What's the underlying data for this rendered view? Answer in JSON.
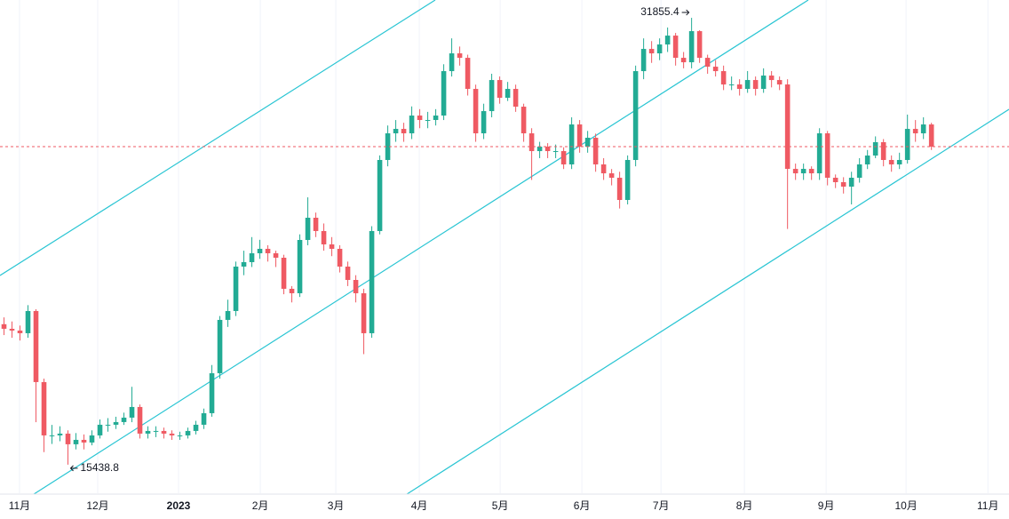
{
  "chart_data": {
    "type": "candlestick",
    "up_color": "#22ab94",
    "down_color": "#ef5a63",
    "last_price_line": true,
    "last_price_color": "#ef5a63",
    "grid": true,
    "xlim": [
      -0.5,
      125.7
    ],
    "ylim": [
      14390,
      32510
    ],
    "xticks": [
      {
        "value": 1.94,
        "label": "11月"
      },
      {
        "value": 11.72,
        "label": "12月"
      },
      {
        "value": 21.83,
        "label": "2023"
      },
      {
        "value": 32.06,
        "label": "2月"
      },
      {
        "value": 41.5,
        "label": "3月"
      },
      {
        "value": 51.94,
        "label": "4月"
      },
      {
        "value": 62.06,
        "label": "5月"
      },
      {
        "value": 72.28,
        "label": "6月"
      },
      {
        "value": 82.17,
        "label": "7月"
      },
      {
        "value": 92.61,
        "label": "8月"
      },
      {
        "value": 102.83,
        "label": "9月"
      },
      {
        "value": 112.83,
        "label": "10月"
      },
      {
        "value": 123.06,
        "label": "11月"
      }
    ],
    "annotations": [
      {
        "label": "31855.4",
        "value": 31855.4
      },
      {
        "label": "15438.8",
        "value": 15438.8
      }
    ],
    "open": [
      20600,
      20431,
      20366,
      20268,
      21084,
      18473,
      16514,
      16514,
      16580,
      16188,
      16351,
      16253,
      16514,
      16906,
      16906,
      17004,
      17167,
      17559,
      16580,
      16678,
      16678,
      16580,
      16514,
      16514,
      16678,
      16906,
      17330,
      18799,
      20758,
      21084,
      22716,
      22879,
      23206,
      23369,
      23206,
      23042,
      21900,
      21737,
      23695,
      24511,
      24022,
      23532,
      23369,
      22716,
      22226,
      21737,
      20268,
      24022,
      26633,
      27612,
      27775,
      27612,
      28265,
      28102,
      28102,
      28265,
      29897,
      30550,
      30386,
      29244,
      27612,
      28428,
      29570,
      28918,
      29244,
      28591,
      27612,
      26959,
      27122,
      26959,
      26959,
      26470,
      27938,
      27122,
      27449,
      26470,
      26143,
      25980,
      25164,
      26633,
      29897,
      30713,
      30550,
      30876,
      31202,
      30386,
      30223,
      31366,
      30386,
      30060,
      29897,
      29407,
      29407,
      29244,
      29570,
      29244,
      29734,
      29570,
      29407,
      26306,
      26143,
      26306,
      26143,
      27612,
      25980,
      25817,
      25654,
      25980,
      26470,
      26796,
      27286,
      26633,
      26470,
      26633,
      27775,
      27612,
      27938
    ],
    "high": [
      20850,
      20700,
      20550,
      21300,
      21150,
      18600,
      16900,
      16850,
      16700,
      16600,
      16550,
      16700,
      17100,
      17150,
      17200,
      17350,
      18300,
      17650,
      16850,
      16850,
      16800,
      16700,
      16650,
      16800,
      17050,
      17500,
      19100,
      20900,
      21500,
      22900,
      23300,
      23800,
      23700,
      23500,
      23300,
      23150,
      22000,
      23900,
      25260,
      24700,
      24300,
      23800,
      23500,
      22900,
      22400,
      21900,
      24200,
      26800,
      27900,
      28100,
      28000,
      28600,
      28500,
      28400,
      28500,
      30150,
      31100,
      30800,
      30500,
      29400,
      28700,
      29800,
      29700,
      29500,
      29400,
      28700,
      27800,
      27300,
      27250,
      27200,
      27100,
      28200,
      28100,
      27700,
      27600,
      26700,
      26300,
      26200,
      26800,
      30100,
      31100,
      31000,
      31100,
      31500,
      31300,
      30600,
      31855.4,
      31400,
      30500,
      30300,
      30100,
      29700,
      29600,
      29900,
      29700,
      30000,
      29900,
      29700,
      29600,
      26500,
      26500,
      26400,
      27800,
      27700,
      26100,
      26000,
      26200,
      26700,
      27000,
      27500,
      27400,
      26800,
      26900,
      28300,
      28100,
      28200,
      28000
    ],
    "low": [
      20200,
      20100,
      20000,
      20100,
      17000,
      15900,
      16200,
      16300,
      15438.8,
      16000,
      16000,
      16150,
      16400,
      16650,
      16750,
      16900,
      17000,
      16400,
      16400,
      16450,
      16400,
      16350,
      16350,
      16400,
      16550,
      16750,
      17200,
      18600,
      20500,
      20900,
      22400,
      22700,
      23000,
      22900,
      22700,
      21700,
      21400,
      21600,
      23500,
      23800,
      23300,
      23100,
      22500,
      22000,
      21400,
      19500,
      20100,
      23900,
      26400,
      27300,
      27300,
      27400,
      27800,
      27800,
      27900,
      28100,
      29700,
      30100,
      29000,
      27300,
      27400,
      28200,
      28700,
      28800,
      28400,
      27300,
      25900,
      26700,
      26700,
      26700,
      26300,
      26300,
      26900,
      26900,
      26200,
      25900,
      25700,
      24850,
      25000,
      26400,
      29600,
      30200,
      30300,
      30600,
      30100,
      30000,
      30000,
      30200,
      29800,
      29700,
      29200,
      29200,
      29000,
      29100,
      29000,
      29100,
      29300,
      29200,
      24100,
      25900,
      25900,
      25900,
      25900,
      25700,
      25600,
      25400,
      25000,
      25800,
      26300,
      26700,
      26400,
      26200,
      26300,
      26500,
      27300,
      27400,
      27000
    ],
    "close": [
      20431,
      20366,
      20268,
      21084,
      18473,
      16514,
      16514,
      16580,
      16188,
      16351,
      16253,
      16514,
      16906,
      16906,
      17004,
      17167,
      17559,
      16580,
      16678,
      16678,
      16580,
      16514,
      16514,
      16678,
      16906,
      17330,
      18799,
      20758,
      21084,
      22716,
      22879,
      23206,
      23369,
      23206,
      23042,
      21900,
      21737,
      23695,
      24511,
      24022,
      23532,
      23369,
      22716,
      22226,
      21737,
      20268,
      24022,
      26633,
      27612,
      27775,
      27612,
      28265,
      28102,
      28102,
      28265,
      29897,
      30550,
      30386,
      29244,
      27612,
      28428,
      29570,
      28918,
      29244,
      28591,
      27612,
      26959,
      27122,
      26959,
      26959,
      26470,
      27938,
      27122,
      27449,
      26470,
      26143,
      25980,
      25164,
      26633,
      29897,
      30713,
      30550,
      30876,
      31202,
      30386,
      30223,
      31366,
      30386,
      30060,
      29897,
      29407,
      29407,
      29244,
      29570,
      29244,
      29734,
      29570,
      29407,
      26306,
      26143,
      26306,
      26143,
      27612,
      25980,
      25817,
      25654,
      25980,
      26470,
      26796,
      27286,
      26633,
      26470,
      26633,
      27775,
      27612,
      27938,
      27122
    ]
  }
}
